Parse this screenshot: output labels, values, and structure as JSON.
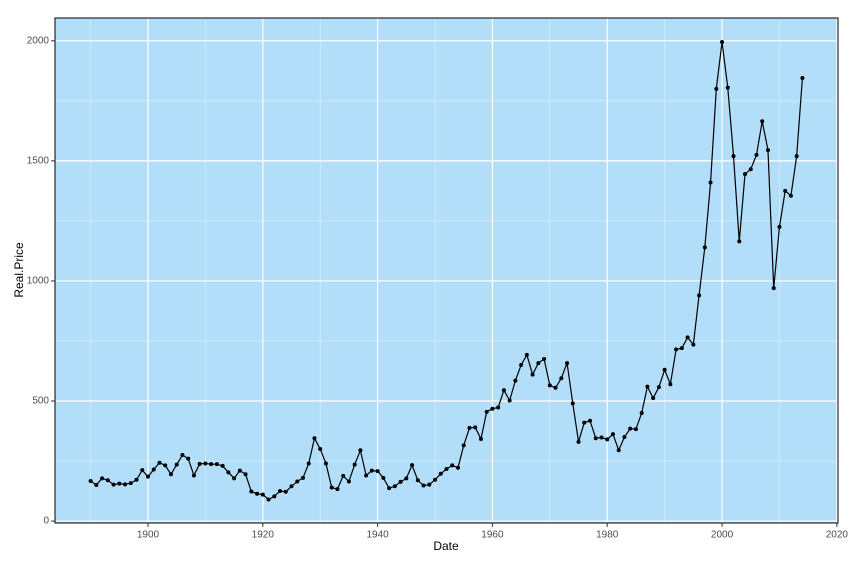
{
  "chart_data": {
    "type": "line",
    "xlabel": "Date",
    "ylabel": "Real.Price",
    "x": [
      1890,
      1891,
      1892,
      1893,
      1894,
      1895,
      1896,
      1897,
      1898,
      1899,
      1900,
      1901,
      1902,
      1903,
      1904,
      1905,
      1906,
      1907,
      1908,
      1909,
      1910,
      1911,
      1912,
      1913,
      1914,
      1915,
      1916,
      1917,
      1918,
      1919,
      1920,
      1921,
      1922,
      1923,
      1924,
      1925,
      1926,
      1927,
      1928,
      1929,
      1930,
      1931,
      1932,
      1933,
      1934,
      1935,
      1936,
      1937,
      1938,
      1939,
      1940,
      1941,
      1942,
      1943,
      1944,
      1945,
      1946,
      1947,
      1948,
      1949,
      1950,
      1951,
      1952,
      1953,
      1954,
      1955,
      1956,
      1957,
      1958,
      1959,
      1960,
      1961,
      1962,
      1963,
      1964,
      1965,
      1966,
      1967,
      1968,
      1969,
      1970,
      1971,
      1972,
      1973,
      1974,
      1975,
      1976,
      1977,
      1978,
      1979,
      1980,
      1981,
      1982,
      1983,
      1984,
      1985,
      1986,
      1987,
      1988,
      1989,
      1990,
      1991,
      1992,
      1993,
      1994,
      1995,
      1996,
      1997,
      1998,
      1999,
      2000,
      2001,
      2002,
      2003,
      2004,
      2005,
      2006,
      2007,
      2008,
      2009,
      2010,
      2011,
      2012,
      2013,
      2014
    ],
    "series": [
      {
        "color": "#000000",
        "values": [
          167,
          150,
          178,
          170,
          152,
          156,
          153,
          158,
          172,
          212,
          185,
          215,
          243,
          232,
          195,
          235,
          275,
          260,
          190,
          238,
          240,
          237,
          237,
          230,
          203,
          178,
          210,
          195,
          123,
          114,
          110,
          90,
          103,
          125,
          122,
          145,
          165,
          180,
          240,
          345,
          300,
          240,
          140,
          133,
          188,
          165,
          235,
          295,
          190,
          210,
          208,
          180,
          137,
          145,
          163,
          178,
          233,
          170,
          148,
          152,
          172,
          197,
          217,
          232,
          222,
          315,
          388,
          390,
          342,
          455,
          468,
          473,
          545,
          502,
          585,
          650,
          692,
          610,
          658,
          675,
          565,
          555,
          595,
          658,
          490,
          330,
          410,
          418,
          345,
          348,
          340,
          362,
          295,
          350,
          385,
          383,
          450,
          560,
          512,
          558,
          630,
          570,
          715,
          720,
          765,
          735,
          940,
          1140,
          1410,
          1800,
          1995,
          1805,
          1520,
          1165,
          1445,
          1465,
          1525,
          1665,
          1545,
          970,
          1225,
          1375,
          1355,
          1520,
          1845
        ]
      }
    ],
    "xlim": [
      1883.8,
      2020.2
    ],
    "xticks": [
      1900,
      1920,
      1940,
      1960,
      1980,
      2000,
      2020
    ],
    "ylim": [
      -8,
      2095
    ],
    "yticks": [
      0,
      500,
      1000,
      1500,
      2000
    ],
    "grid": true,
    "background": "#b3defa"
  }
}
